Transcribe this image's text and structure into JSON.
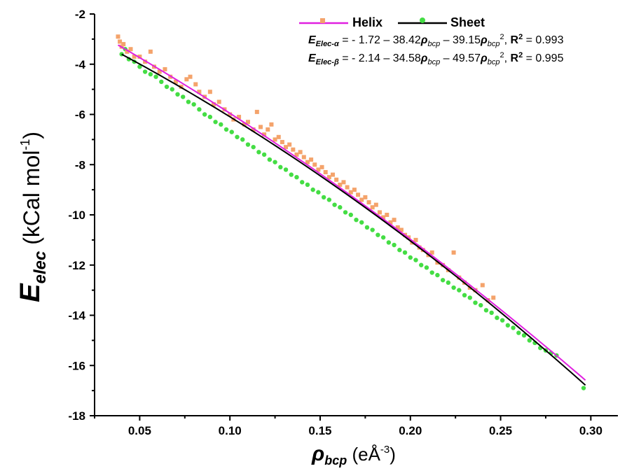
{
  "chart_data": {
    "type": "scatter",
    "xlim": [
      0.025,
      0.315
    ],
    "ylim": [
      -18,
      -2
    ],
    "x_ticks": [
      "0.05",
      "0.10",
      "0.15",
      "0.20",
      "0.25",
      "0.30"
    ],
    "x_tick_values": [
      0.05,
      0.1,
      0.15,
      0.2,
      0.25,
      0.3
    ],
    "y_ticks": [
      "-2",
      "-4",
      "-6",
      "-8",
      "-10",
      "-12",
      "-14",
      "-16",
      "-18"
    ],
    "y_tick_values": [
      -2,
      -4,
      -6,
      -8,
      -10,
      -12,
      -14,
      -16,
      -18
    ],
    "ylabel": {
      "main": "E",
      "sub": "elec",
      "units": " (kCal mol",
      "exp": "-1",
      "close": ")"
    },
    "xlabel": {
      "main": "ρ",
      "sub": "bcp",
      "units": " (eÅ",
      "exp": "-3",
      "close": ")"
    },
    "legend": {
      "placement": "top-right",
      "entries": [
        {
          "name": "Helix",
          "marker": "square",
          "marker_color": "#f4a36b",
          "line_color": "#e020e0"
        },
        {
          "name": "Sheet",
          "marker": "circle",
          "marker_color": "#44dd44",
          "line_color": "#000000"
        }
      ]
    },
    "equations": [
      {
        "lhs": "E",
        "lhs_sub": "Elec-α",
        "rhs_a": " = - 1.72 – 38.42",
        "rho1": "ρ",
        "sub1": "bcp",
        "rhs_b": " – 39.15",
        "rho2": "ρ",
        "sub2": "bcp",
        "sup2": "2",
        "sep": ", ",
        "r": "R",
        "r_sup": "2",
        "r_val": " = 0.993"
      },
      {
        "lhs": "E",
        "lhs_sub": "Elec-β",
        "rhs_a": " = - 2.14 – 34.58",
        "rho1": "ρ",
        "sub1": "bcp",
        "rhs_b": " – 49.57",
        "rho2": "ρ",
        "sub2": "bcp",
        "sup2": "2",
        "sep": ", ",
        "r": "R",
        "r_sup": "2",
        "r_val": " = 0.995"
      }
    ],
    "series": [
      {
        "name": "Helix",
        "fit": {
          "a": -1.72,
          "b": -38.42,
          "c": -39.15,
          "x_range": [
            0.038,
            0.297
          ],
          "color": "#e020e0"
        },
        "points": [
          [
            0.038,
            -2.9
          ],
          [
            0.039,
            -3.1
          ],
          [
            0.04,
            -3.3
          ],
          [
            0.041,
            -3.2
          ],
          [
            0.043,
            -3.5
          ],
          [
            0.045,
            -3.4
          ],
          [
            0.047,
            -3.7
          ],
          [
            0.05,
            -3.7
          ],
          [
            0.053,
            -3.9
          ],
          [
            0.056,
            -3.5
          ],
          [
            0.058,
            -4.1
          ],
          [
            0.061,
            -4.3
          ],
          [
            0.064,
            -4.2
          ],
          [
            0.067,
            -4.5
          ],
          [
            0.07,
            -4.7
          ],
          [
            0.073,
            -4.9
          ],
          [
            0.076,
            -4.6
          ],
          [
            0.078,
            -4.5
          ],
          [
            0.081,
            -4.8
          ],
          [
            0.083,
            -5.1
          ],
          [
            0.086,
            -5.3
          ],
          [
            0.089,
            -5.1
          ],
          [
            0.091,
            -5.6
          ],
          [
            0.094,
            -5.5
          ],
          [
            0.097,
            -5.8
          ],
          [
            0.1,
            -6.0
          ],
          [
            0.102,
            -6.2
          ],
          [
            0.105,
            -6.1
          ],
          [
            0.108,
            -6.4
          ],
          [
            0.11,
            -6.3
          ],
          [
            0.113,
            -6.6
          ],
          [
            0.115,
            -5.9
          ],
          [
            0.117,
            -6.5
          ],
          [
            0.119,
            -6.8
          ],
          [
            0.121,
            -6.6
          ],
          [
            0.123,
            -6.4
          ],
          [
            0.125,
            -7.0
          ],
          [
            0.127,
            -6.9
          ],
          [
            0.129,
            -7.1
          ],
          [
            0.131,
            -7.3
          ],
          [
            0.133,
            -7.2
          ],
          [
            0.135,
            -7.4
          ],
          [
            0.137,
            -7.6
          ],
          [
            0.139,
            -7.5
          ],
          [
            0.141,
            -7.7
          ],
          [
            0.143,
            -7.9
          ],
          [
            0.145,
            -7.8
          ],
          [
            0.147,
            -8.0
          ],
          [
            0.149,
            -8.2
          ],
          [
            0.151,
            -8.1
          ],
          [
            0.153,
            -8.3
          ],
          [
            0.155,
            -8.5
          ],
          [
            0.157,
            -8.4
          ],
          [
            0.159,
            -8.6
          ],
          [
            0.161,
            -8.8
          ],
          [
            0.163,
            -8.7
          ],
          [
            0.165,
            -8.9
          ],
          [
            0.167,
            -9.1
          ],
          [
            0.169,
            -9.0
          ],
          [
            0.171,
            -9.2
          ],
          [
            0.173,
            -9.4
          ],
          [
            0.175,
            -9.3
          ],
          [
            0.177,
            -9.5
          ],
          [
            0.179,
            -9.7
          ],
          [
            0.181,
            -9.6
          ],
          [
            0.183,
            -9.9
          ],
          [
            0.185,
            -10.1
          ],
          [
            0.187,
            -10.0
          ],
          [
            0.189,
            -10.3
          ],
          [
            0.191,
            -10.2
          ],
          [
            0.193,
            -10.5
          ],
          [
            0.195,
            -10.6
          ],
          [
            0.197,
            -10.8
          ],
          [
            0.199,
            -10.9
          ],
          [
            0.201,
            -11.1
          ],
          [
            0.203,
            -11.0
          ],
          [
            0.205,
            -11.3
          ],
          [
            0.207,
            -11.4
          ],
          [
            0.21,
            -11.6
          ],
          [
            0.212,
            -11.5
          ],
          [
            0.215,
            -11.9
          ],
          [
            0.218,
            -12.0
          ],
          [
            0.221,
            -12.2
          ],
          [
            0.224,
            -11.5
          ],
          [
            0.227,
            -12.5
          ],
          [
            0.23,
            -12.7
          ],
          [
            0.233,
            -12.9
          ],
          [
            0.236,
            -13.0
          ],
          [
            0.24,
            -12.8
          ],
          [
            0.243,
            -13.4
          ],
          [
            0.246,
            -13.3
          ]
        ]
      },
      {
        "name": "Sheet",
        "fit": {
          "a": -2.14,
          "b": -34.58,
          "c": -49.57,
          "x_range": [
            0.04,
            0.297
          ],
          "color": "#000000"
        },
        "points": [
          [
            0.04,
            -3.6
          ],
          [
            0.042,
            -3.4
          ],
          [
            0.044,
            -3.8
          ],
          [
            0.047,
            -3.9
          ],
          [
            0.05,
            -4.1
          ],
          [
            0.053,
            -4.3
          ],
          [
            0.056,
            -4.4
          ],
          [
            0.059,
            -4.5
          ],
          [
            0.062,
            -4.7
          ],
          [
            0.065,
            -4.9
          ],
          [
            0.068,
            -5.0
          ],
          [
            0.071,
            -5.2
          ],
          [
            0.074,
            -5.3
          ],
          [
            0.077,
            -5.5
          ],
          [
            0.08,
            -5.6
          ],
          [
            0.083,
            -5.8
          ],
          [
            0.086,
            -6.0
          ],
          [
            0.089,
            -6.1
          ],
          [
            0.092,
            -6.3
          ],
          [
            0.095,
            -6.4
          ],
          [
            0.098,
            -6.6
          ],
          [
            0.101,
            -6.7
          ],
          [
            0.104,
            -6.9
          ],
          [
            0.107,
            -7.0
          ],
          [
            0.11,
            -7.2
          ],
          [
            0.113,
            -7.3
          ],
          [
            0.116,
            -7.5
          ],
          [
            0.119,
            -7.6
          ],
          [
            0.122,
            -7.8
          ],
          [
            0.125,
            -7.9
          ],
          [
            0.128,
            -8.1
          ],
          [
            0.131,
            -8.2
          ],
          [
            0.134,
            -8.4
          ],
          [
            0.137,
            -8.5
          ],
          [
            0.14,
            -8.7
          ],
          [
            0.143,
            -8.8
          ],
          [
            0.146,
            -9.0
          ],
          [
            0.149,
            -9.1
          ],
          [
            0.152,
            -9.3
          ],
          [
            0.155,
            -9.4
          ],
          [
            0.158,
            -9.6
          ],
          [
            0.161,
            -9.7
          ],
          [
            0.164,
            -9.9
          ],
          [
            0.167,
            -10.0
          ],
          [
            0.17,
            -10.2
          ],
          [
            0.173,
            -10.3
          ],
          [
            0.176,
            -10.5
          ],
          [
            0.179,
            -10.6
          ],
          [
            0.182,
            -10.8
          ],
          [
            0.185,
            -10.9
          ],
          [
            0.188,
            -11.1
          ],
          [
            0.191,
            -11.2
          ],
          [
            0.194,
            -11.4
          ],
          [
            0.197,
            -11.5
          ],
          [
            0.2,
            -11.7
          ],
          [
            0.203,
            -11.8
          ],
          [
            0.206,
            -12.0
          ],
          [
            0.209,
            -12.1
          ],
          [
            0.212,
            -12.3
          ],
          [
            0.215,
            -12.4
          ],
          [
            0.218,
            -12.6
          ],
          [
            0.221,
            -12.7
          ],
          [
            0.224,
            -12.9
          ],
          [
            0.227,
            -13.0
          ],
          [
            0.23,
            -13.2
          ],
          [
            0.233,
            -13.3
          ],
          [
            0.236,
            -13.5
          ],
          [
            0.239,
            -13.6
          ],
          [
            0.242,
            -13.8
          ],
          [
            0.245,
            -13.9
          ],
          [
            0.248,
            -14.1
          ],
          [
            0.251,
            -14.2
          ],
          [
            0.254,
            -14.4
          ],
          [
            0.257,
            -14.5
          ],
          [
            0.26,
            -14.7
          ],
          [
            0.263,
            -14.8
          ],
          [
            0.266,
            -15.0
          ],
          [
            0.269,
            -15.1
          ],
          [
            0.272,
            -15.3
          ],
          [
            0.275,
            -15.4
          ],
          [
            0.278,
            -15.5
          ],
          [
            0.281,
            -15.6
          ],
          [
            0.296,
            -16.9
          ]
        ]
      }
    ]
  }
}
